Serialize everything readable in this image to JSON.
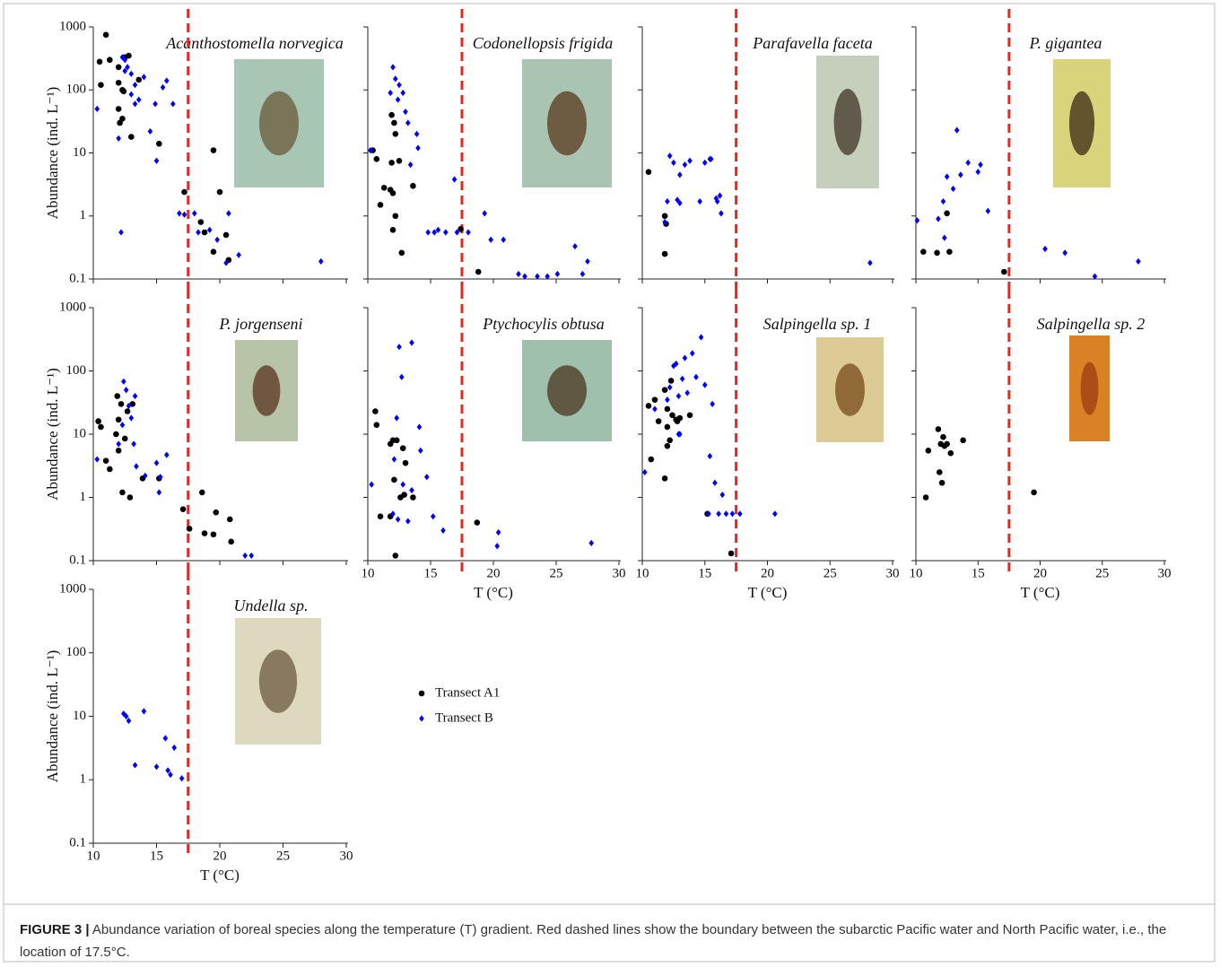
{
  "chart_data": [
    {
      "type": "scatter",
      "title": "Acanthostomella norvegica",
      "ylabel": "Abundance (ind. L⁻¹)",
      "xlim": [
        10,
        30
      ],
      "ylim": [
        0.1,
        1000
      ],
      "xticks": [
        10,
        15,
        20,
        25,
        30
      ],
      "yticks": [
        0.1,
        1,
        10,
        100,
        1000
      ],
      "log_y": true,
      "xtick_labels": false,
      "ytick_labels": true,
      "boundary_x": 17.5,
      "boundary_color": "#e8261e",
      "series": [
        {
          "name": "Transect A1",
          "color": "#000000",
          "marker": "circle",
          "x": [
            10.5,
            11.0,
            10.6,
            11.3,
            12.0,
            12.0,
            12.3,
            12.5,
            12.8,
            12.0,
            12.1,
            12.3,
            13.0,
            13.6,
            15.2,
            17.2,
            18.5,
            18.8,
            19.5,
            19.5,
            20.0,
            20.5,
            20.7,
            12.4
          ],
          "values": [
            280,
            750,
            120,
            300,
            230,
            130,
            100,
            330,
            350,
            50,
            30,
            35,
            18,
            145,
            14,
            2.4,
            0.8,
            0.55,
            11,
            0.27,
            2.4,
            0.5,
            0.2,
            95
          ]
        },
        {
          "name": "Transect B",
          "color": "#0000ff",
          "marker": "diamond",
          "x": [
            10.3,
            12.0,
            12.3,
            12.5,
            12.7,
            13.0,
            13.3,
            13.6,
            13.3,
            13.0,
            14.0,
            14.5,
            14.9,
            15.0,
            15.5,
            15.8,
            16.3,
            12.2,
            16.8,
            17.2,
            18.0,
            18.3,
            19.2,
            19.8,
            20.5,
            20.7,
            21.5,
            28.0,
            12.5
          ],
          "values": [
            50,
            17,
            330,
            300,
            230,
            180,
            120,
            70,
            60,
            85,
            160,
            22,
            60,
            7.5,
            110,
            140,
            60,
            0.55,
            1.1,
            1.05,
            1.1,
            0.55,
            0.6,
            0.42,
            0.18,
            1.1,
            0.24,
            0.19,
            200
          ]
        }
      ]
    },
    {
      "type": "scatter",
      "title": "Codonellopsis frigida",
      "xlim": [
        10,
        30
      ],
      "ylim": [
        0.1,
        1000
      ],
      "xticks": [
        10,
        15,
        20,
        25,
        30
      ],
      "yticks": [
        0.1,
        1,
        10,
        100,
        1000
      ],
      "log_y": true,
      "xtick_labels": false,
      "ytick_labels": false,
      "boundary_x": 17.5,
      "boundary_color": "#e8261e",
      "series": [
        {
          "name": "Transect A1",
          "color": "#000000",
          "marker": "circle",
          "x": [
            10.4,
            10.7,
            11.0,
            11.3,
            11.8,
            11.9,
            11.9,
            12.0,
            12.1,
            12.2,
            12.2,
            12.5,
            12.7,
            13.6,
            17.4,
            18.8,
            12.0
          ],
          "values": [
            11,
            8,
            1.5,
            2.8,
            2.6,
            7,
            40,
            0.6,
            30,
            20,
            1.0,
            7.5,
            0.26,
            3,
            0.62,
            0.13,
            2.3
          ]
        },
        {
          "name": "Transect B",
          "color": "#0000ff",
          "marker": "diamond",
          "x": [
            10.2,
            11.8,
            12.0,
            12.2,
            12.5,
            12.8,
            13.0,
            13.2,
            13.4,
            13.9,
            14.0,
            12.4,
            14.8,
            15.3,
            15.6,
            16.2,
            16.9,
            18.0,
            19.3,
            19.8,
            20.8,
            22.0,
            22.5,
            23.5,
            24.3,
            25.1,
            26.5,
            27.1,
            27.5,
            17.1
          ],
          "values": [
            11,
            90,
            230,
            150,
            120,
            90,
            45,
            30,
            6.5,
            20,
            12,
            70,
            0.55,
            0.55,
            0.6,
            0.55,
            3.8,
            0.55,
            1.1,
            0.42,
            0.42,
            0.12,
            0.11,
            0.11,
            0.11,
            0.12,
            0.33,
            0.12,
            0.19,
            0.55
          ]
        }
      ]
    },
    {
      "type": "scatter",
      "title": "Parafavella faceta",
      "xlim": [
        10,
        30
      ],
      "ylim": [
        0.1,
        1000
      ],
      "xticks": [
        10,
        15,
        20,
        25,
        30
      ],
      "yticks": [
        0.1,
        1,
        10,
        100,
        1000
      ],
      "log_y": true,
      "xtick_labels": false,
      "ytick_labels": false,
      "boundary_x": 17.5,
      "boundary_color": "#e8261e",
      "series": [
        {
          "name": "Transect A1",
          "color": "#000000",
          "marker": "circle",
          "x": [
            10.5,
            11.8,
            11.9,
            11.8
          ],
          "values": [
            5,
            1.0,
            0.75,
            0.25
          ]
        },
        {
          "name": "Transect B",
          "color": "#0000ff",
          "marker": "diamond",
          "x": [
            11.8,
            12.0,
            12.2,
            12.5,
            12.8,
            13.0,
            13.4,
            13.8,
            14.6,
            15.0,
            15.5,
            15.4,
            15.9,
            16.0,
            16.3,
            16.2,
            28.2,
            13.0
          ],
          "values": [
            0.8,
            1.7,
            9,
            7,
            1.8,
            4.5,
            6.5,
            7.5,
            1.7,
            7,
            8,
            8,
            1.9,
            1.7,
            1.1,
            2.1,
            0.18,
            1.6
          ]
        }
      ]
    },
    {
      "type": "scatter",
      "title": "P. gigantea",
      "xlim": [
        10,
        30
      ],
      "ylim": [
        0.1,
        1000
      ],
      "xticks": [
        10,
        15,
        20,
        25,
        30
      ],
      "yticks": [
        0.1,
        1,
        10,
        100,
        1000
      ],
      "log_y": true,
      "xtick_labels": false,
      "ytick_labels": false,
      "boundary_x": 17.5,
      "boundary_color": "#e8261e",
      "series": [
        {
          "name": "Transect A1",
          "color": "#000000",
          "marker": "circle",
          "x": [
            10.6,
            11.7,
            12.5,
            12.7,
            17.1
          ],
          "values": [
            0.27,
            0.26,
            1.1,
            0.27,
            0.13
          ]
        },
        {
          "name": "Transect B",
          "color": "#0000ff",
          "marker": "diamond",
          "x": [
            10.1,
            11.8,
            12.2,
            12.3,
            12.5,
            13.0,
            13.3,
            14.2,
            13.6,
            15.2,
            15.0,
            15.8,
            20.4,
            22.0,
            24.4,
            27.9
          ],
          "values": [
            0.85,
            0.9,
            1.7,
            0.45,
            4.2,
            2.7,
            23,
            7,
            4.5,
            6.5,
            5,
            1.2,
            0.3,
            0.26,
            0.11,
            0.19
          ]
        }
      ]
    },
    {
      "type": "scatter",
      "title": "P. jorgenseni",
      "ylabel": "Abundance (ind. L⁻¹)",
      "xlim": [
        10,
        30
      ],
      "ylim": [
        0.1,
        1000
      ],
      "xticks": [
        10,
        15,
        20,
        25,
        30
      ],
      "yticks": [
        0.1,
        1,
        10,
        100,
        1000
      ],
      "log_y": true,
      "xtick_labels": false,
      "ytick_labels": true,
      "boundary_x": 17.5,
      "boundary_color": "#e8261e",
      "series": [
        {
          "name": "Transect A1",
          "color": "#000000",
          "marker": "circle",
          "x": [
            10.4,
            10.6,
            11.0,
            11.3,
            11.8,
            11.9,
            12.0,
            12.0,
            12.2,
            12.3,
            12.5,
            12.7,
            12.9,
            13.1,
            13.9,
            15.2,
            17.1,
            17.6,
            18.6,
            18.8,
            19.5,
            19.7,
            20.8,
            20.9
          ],
          "values": [
            16,
            13,
            3.8,
            2.8,
            10,
            40,
            17,
            5.5,
            30,
            1.2,
            8.5,
            23,
            1.0,
            30,
            2,
            2,
            0.65,
            0.32,
            1.2,
            0.27,
            0.26,
            0.58,
            0.45,
            0.2
          ]
        },
        {
          "name": "Transect B",
          "color": "#0000ff",
          "marker": "diamond",
          "x": [
            10.3,
            12.0,
            12.4,
            12.6,
            12.8,
            13.0,
            13.3,
            13.2,
            13.4,
            14.1,
            15.0,
            15.2,
            15.3,
            15.8,
            12.3,
            22.0,
            22.5
          ],
          "values": [
            4,
            7,
            68,
            50,
            28,
            18,
            40,
            7,
            3.1,
            2.2,
            3.5,
            1.2,
            2.1,
            4.7,
            14,
            0.12,
            0.12
          ]
        }
      ]
    },
    {
      "type": "scatter",
      "title": "Ptychocylis obtusa",
      "xlabel": "T (°C)",
      "xlim": [
        10,
        30
      ],
      "ylim": [
        0.1,
        1000
      ],
      "xticks": [
        10,
        15,
        20,
        25,
        30
      ],
      "yticks": [
        0.1,
        1,
        10,
        100,
        1000
      ],
      "log_y": true,
      "xtick_labels": true,
      "ytick_labels": false,
      "boundary_x": 17.5,
      "boundary_color": "#e8261e",
      "series": [
        {
          "name": "Transect A1",
          "color": "#000000",
          "marker": "circle",
          "x": [
            10.6,
            10.7,
            11.0,
            11.8,
            11.8,
            12.0,
            12.1,
            12.3,
            12.2,
            12.6,
            12.9,
            13.0,
            13.6,
            18.7,
            12.8
          ],
          "values": [
            23,
            14,
            0.5,
            0.5,
            7,
            8,
            1.9,
            8,
            0.12,
            1.0,
            1.1,
            3.5,
            1.0,
            0.4,
            6
          ]
        },
        {
          "name": "Transect B",
          "color": "#0000ff",
          "marker": "diamond",
          "x": [
            10.3,
            12.0,
            12.1,
            12.3,
            12.5,
            12.7,
            12.4,
            12.8,
            13.2,
            13.5,
            14.1,
            14.2,
            14.7,
            15.2,
            16.0,
            20.4,
            20.3,
            27.8,
            13.5
          ],
          "values": [
            1.6,
            0.55,
            4,
            18,
            240,
            80,
            0.45,
            1.6,
            0.42,
            280,
            13,
            5.5,
            2.1,
            0.5,
            0.3,
            0.28,
            0.17,
            0.19,
            1.3
          ]
        }
      ]
    },
    {
      "type": "scatter",
      "title": "Salpingella sp. 1",
      "xlabel": "T (°C)",
      "xlim": [
        10,
        30
      ],
      "ylim": [
        0.1,
        1000
      ],
      "xticks": [
        10,
        15,
        20,
        25,
        30
      ],
      "yticks": [
        0.1,
        1,
        10,
        100,
        1000
      ],
      "log_y": true,
      "xtick_labels": true,
      "ytick_labels": false,
      "boundary_x": 17.5,
      "boundary_color": "#e8261e",
      "series": [
        {
          "name": "Transect A1",
          "color": "#000000",
          "marker": "circle",
          "x": [
            10.5,
            10.7,
            11.0,
            11.3,
            11.8,
            11.8,
            12.0,
            12.0,
            12.2,
            12.3,
            12.4,
            12.7,
            12.8,
            13.0,
            13.8,
            15.2,
            17.1,
            12.0
          ],
          "values": [
            28,
            4,
            35,
            16,
            2,
            50,
            25,
            6.5,
            8,
            70,
            20,
            17,
            16,
            18,
            20,
            0.55,
            0.13,
            13
          ]
        },
        {
          "name": "Transect B",
          "color": "#0000ff",
          "marker": "diamond",
          "x": [
            10.2,
            11.0,
            12.0,
            12.2,
            12.5,
            12.7,
            12.9,
            13.2,
            13.0,
            13.4,
            13.6,
            14.0,
            14.3,
            14.7,
            15.0,
            15.4,
            15.6,
            15.8,
            16.4,
            16.7,
            17.2,
            17.8,
            20.6,
            15.3,
            16.1,
            12.9
          ],
          "values": [
            2.5,
            25,
            35,
            55,
            120,
            130,
            40,
            75,
            10,
            160,
            45,
            190,
            80,
            340,
            60,
            4.5,
            30,
            1.7,
            1.1,
            0.55,
            0.55,
            0.55,
            0.55,
            0.55,
            0.55,
            10
          ]
        }
      ]
    },
    {
      "type": "scatter",
      "title": "Salpingella sp. 2",
      "xlabel": "T (°C)",
      "xlim": [
        10,
        30
      ],
      "ylim": [
        0.1,
        1000
      ],
      "xticks": [
        10,
        15,
        20,
        25,
        30
      ],
      "yticks": [
        0.1,
        1,
        10,
        100,
        1000
      ],
      "log_y": true,
      "xtick_labels": true,
      "ytick_labels": false,
      "boundary_x": 17.5,
      "boundary_color": "#e8261e",
      "series": [
        {
          "name": "Transect A1",
          "color": "#000000",
          "marker": "circle",
          "x": [
            10.8,
            11.0,
            11.8,
            11.9,
            12.0,
            12.1,
            12.2,
            12.3,
            12.5,
            12.8,
            13.8,
            19.5
          ],
          "values": [
            1.0,
            5.5,
            12,
            2.5,
            7,
            1.7,
            9,
            6.5,
            7,
            5,
            8,
            1.2
          ]
        }
      ]
    },
    {
      "type": "scatter",
      "title": "Undella sp.",
      "xlabel": "T (°C)",
      "ylabel": "Abundance (ind. L⁻¹)",
      "xlim": [
        10,
        30
      ],
      "ylim": [
        0.1,
        1000
      ],
      "xticks": [
        10,
        15,
        20,
        25,
        30
      ],
      "yticks": [
        0.1,
        1,
        10,
        100,
        1000
      ],
      "log_y": true,
      "xtick_labels": true,
      "ytick_labels": true,
      "boundary_x": 17.5,
      "boundary_color": "#e8261e",
      "series": [
        {
          "name": "Transect B",
          "color": "#0000ff",
          "marker": "diamond",
          "x": [
            12.4,
            12.6,
            12.8,
            13.3,
            14.0,
            15.0,
            15.7,
            15.9,
            16.1,
            16.4,
            17.0
          ],
          "values": [
            11,
            10,
            8.5,
            1.7,
            12,
            1.6,
            4.5,
            1.4,
            1.2,
            3.2,
            1.05
          ]
        }
      ]
    }
  ],
  "caption": {
    "label": "FIGURE 3 |",
    "text": "Abundance variation of boreal species along the temperature (T) gradient. Red dashed lines show the boundary between the subarctic Pacific water and North Pacific water, i.e., the location of 17.5°C."
  }
}
